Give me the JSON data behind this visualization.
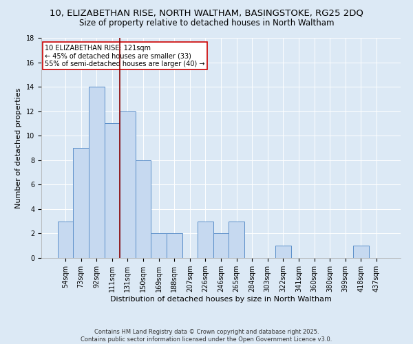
{
  "title1": "10, ELIZABETHAN RISE, NORTH WALTHAM, BASINGSTOKE, RG25 2DQ",
  "title2": "Size of property relative to detached houses in North Waltham",
  "xlabel": "Distribution of detached houses by size in North Waltham",
  "ylabel": "Number of detached properties",
  "categories": [
    "54sqm",
    "73sqm",
    "92sqm",
    "111sqm",
    "131sqm",
    "150sqm",
    "169sqm",
    "188sqm",
    "207sqm",
    "226sqm",
    "246sqm",
    "265sqm",
    "284sqm",
    "303sqm",
    "322sqm",
    "341sqm",
    "360sqm",
    "380sqm",
    "399sqm",
    "418sqm",
    "437sqm"
  ],
  "values": [
    3,
    9,
    14,
    11,
    12,
    8,
    2,
    2,
    0,
    3,
    2,
    3,
    0,
    0,
    1,
    0,
    0,
    0,
    0,
    1,
    0
  ],
  "bar_color": "#c6d9f0",
  "bar_edge_color": "#5b8fc9",
  "vline_x": 3.5,
  "vline_color": "#8b0000",
  "annotation_text": "10 ELIZABETHAN RISE: 121sqm\n← 45% of detached houses are smaller (33)\n55% of semi-detached houses are larger (40) →",
  "annotation_box_color": "white",
  "annotation_box_edge": "#cc0000",
  "ylim": [
    0,
    18
  ],
  "yticks": [
    0,
    2,
    4,
    6,
    8,
    10,
    12,
    14,
    16,
    18
  ],
  "background_color": "#dce9f5",
  "footer_text": "Contains HM Land Registry data © Crown copyright and database right 2025.\nContains public sector information licensed under the Open Government Licence v3.0.",
  "title_fontsize": 9.5,
  "subtitle_fontsize": 8.5,
  "axis_label_fontsize": 8,
  "tick_fontsize": 7,
  "annotation_fontsize": 7,
  "footer_fontsize": 6
}
